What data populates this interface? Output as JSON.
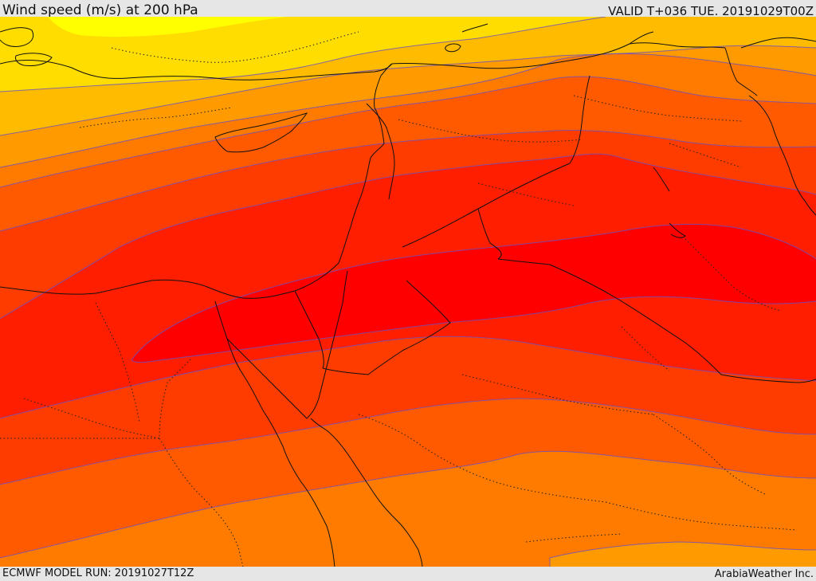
{
  "header": {
    "title": "Wind speed (m/s) at 200 hPa",
    "valid_time": "VALID T+036 TUE. 20191029T00Z"
  },
  "footer": {
    "model_run": "ECMWF MODEL RUN: 20191027T12Z",
    "credit": "ArabiaWeather Inc."
  },
  "map": {
    "field": "wind speed at 200 hPa",
    "band_colors": [
      "#ffff00",
      "#ffdd00",
      "#ffbb00",
      "#ff9a00",
      "#ff7b00",
      "#ff5a00",
      "#ff3c00",
      "#ff1e00",
      "#ff0000"
    ],
    "contour_line_color": "#6a4fc4",
    "coastline_color": "#111111",
    "border_style": "dotted",
    "country_border_style": "solid"
  }
}
